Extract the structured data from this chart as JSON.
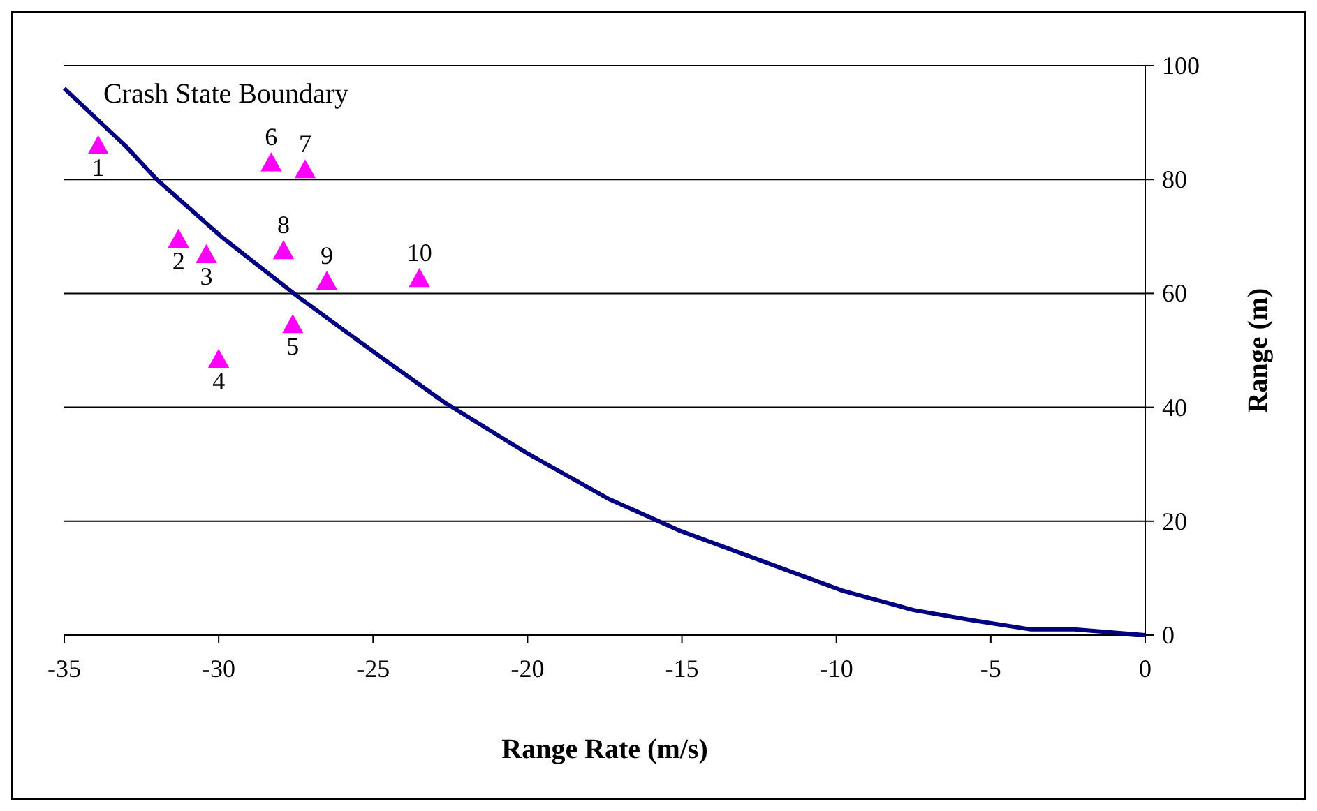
{
  "chart_data": {
    "type": "scatter",
    "xlabel": "Range Rate (m/s)",
    "ylabel": "Range (m)",
    "xlim": [
      -35,
      0
    ],
    "xticks": [
      -35,
      -30,
      -25,
      -20,
      -15,
      -10,
      -5,
      0
    ],
    "ylim": [
      0,
      100
    ],
    "yticks": [
      0,
      20,
      40,
      60,
      80,
      100
    ],
    "grid": "y",
    "legend": false,
    "marker": "triangle",
    "annotations": [
      {
        "text": "Crash State Boundary",
        "x": -35,
        "y": 96
      },
      {
        "text": "1",
        "x": -33.9,
        "y": 85.8
      },
      {
        "text": "2",
        "x": -31.3,
        "y": 69.4
      },
      {
        "text": "3",
        "x": -30.4,
        "y": 66.7
      },
      {
        "text": "4",
        "x": -30,
        "y": 48.3
      },
      {
        "text": "5",
        "x": -27.6,
        "y": 54.4
      },
      {
        "text": "6",
        "x": -28.3,
        "y": 82.8
      },
      {
        "text": "7",
        "x": -27.2,
        "y": 81.6
      },
      {
        "text": "8",
        "x": -27.9,
        "y": 67.4
      },
      {
        "text": "9",
        "x": -26.5,
        "y": 62
      },
      {
        "text": "10",
        "x": -23.5,
        "y": 62.5
      }
    ],
    "series": [
      {
        "type": "line",
        "color": "#000080",
        "marker": "none",
        "line_style": "solid",
        "x": [
          -35,
          -33,
          -32,
          -29.9,
          -27.4,
          -25,
          -22.7,
          -20,
          -17.4,
          -15.1,
          -12.4,
          -9.8,
          -7.5,
          -5.7,
          -3.7,
          -2.3,
          0
        ],
        "values": [
          96,
          85.8,
          80,
          69.9,
          59.3,
          49.8,
          40.9,
          31.9,
          24,
          18.4,
          13,
          7.8,
          4.4,
          2.7,
          1,
          1,
          0
        ]
      },
      {
        "color": "#ff00ff",
        "x": [
          -33.9,
          -31.3,
          -30.4,
          -30,
          -27.6,
          -28.3,
          -27.2,
          -27.9,
          -26.5,
          -23.5
        ],
        "values": [
          85.8,
          69.4,
          66.7,
          48.3,
          54.4,
          82.8,
          81.6,
          67.4,
          62,
          62.5
        ]
      }
    ]
  }
}
